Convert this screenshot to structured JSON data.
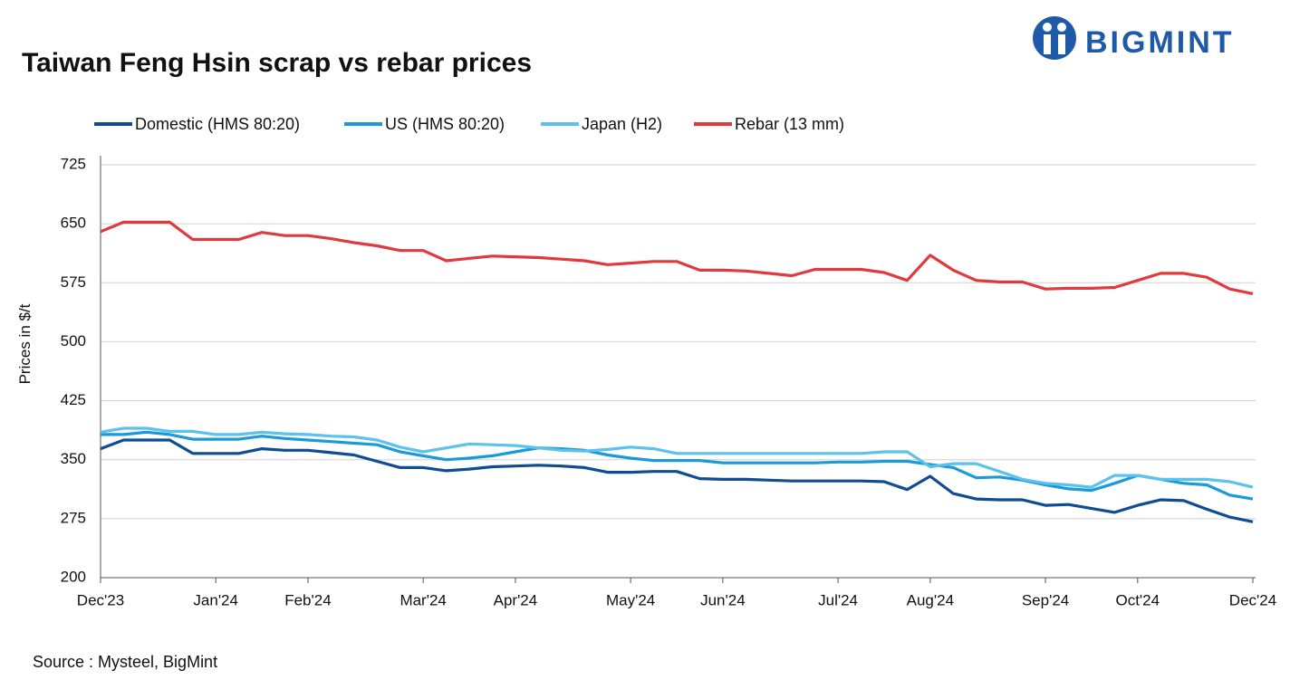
{
  "chart_data": {
    "type": "line",
    "title": "Taiwan Feng Hsin scrap vs rebar prices",
    "logo": "BIGMINT",
    "y_label": "Prices in $/t",
    "source": "Source : Mysteel, BigMint",
    "categories": [
      "Dec'23",
      null,
      null,
      null,
      null,
      "Jan'24",
      null,
      null,
      null,
      "Feb'24",
      null,
      null,
      null,
      null,
      "Mar'24",
      null,
      null,
      null,
      "Apr'24",
      null,
      null,
      null,
      null,
      "May'24",
      null,
      null,
      null,
      "Jun'24",
      null,
      null,
      null,
      null,
      "Jul'24",
      null,
      null,
      null,
      "Aug'24",
      null,
      null,
      null,
      null,
      "Sep'24",
      null,
      null,
      null,
      "Oct'24",
      null,
      null,
      null,
      null,
      "Dec'24"
    ],
    "series": [
      {
        "name": "Domestic (HMS 80:20)",
        "color": "#0f4c92",
        "values": [
          364,
          375,
          375,
          375,
          358,
          358,
          358,
          364,
          362,
          362,
          359,
          356,
          348,
          340,
          340,
          336,
          338,
          341,
          342,
          343,
          342,
          340,
          334,
          334,
          335,
          335,
          326,
          325,
          325,
          324,
          323,
          323,
          323,
          323,
          322,
          312,
          329,
          307,
          300,
          299,
          299,
          292,
          293,
          288,
          283,
          292,
          299,
          298,
          287,
          277,
          271
        ]
      },
      {
        "name": "US (HMS 80:20)",
        "color": "#1a9ad6",
        "values": [
          382,
          382,
          385,
          382,
          376,
          376,
          376,
          380,
          377,
          375,
          373,
          371,
          369,
          360,
          355,
          350,
          352,
          355,
          360,
          365,
          364,
          362,
          356,
          352,
          349,
          349,
          349,
          346,
          346,
          346,
          346,
          346,
          347,
          347,
          348,
          348,
          344,
          340,
          327,
          328,
          324,
          318,
          313,
          311,
          320,
          330,
          325,
          320,
          318,
          305,
          300
        ]
      },
      {
        "name": "Japan (H2)",
        "color": "#5bc2ee",
        "values": [
          385,
          390,
          390,
          386,
          386,
          382,
          382,
          385,
          383,
          382,
          380,
          379,
          375,
          366,
          360,
          365,
          370,
          369,
          368,
          365,
          362,
          361,
          363,
          366,
          364,
          358,
          358,
          358,
          358,
          358,
          358,
          358,
          358,
          358,
          360,
          360,
          341,
          345,
          345,
          335,
          325,
          320,
          318,
          315,
          330,
          330,
          325,
          325,
          325,
          322,
          315
        ]
      },
      {
        "name": "Rebar (13 mm)",
        "color": "#e03a3e",
        "values": [
          640,
          652,
          652,
          652,
          630,
          630,
          630,
          639,
          635,
          635,
          631,
          626,
          622,
          616,
          616,
          603,
          606,
          609,
          608,
          607,
          605,
          603,
          598,
          600,
          602,
          602,
          591,
          591,
          590,
          587,
          584,
          592,
          592,
          592,
          588,
          578,
          610,
          591,
          578,
          576,
          576,
          567,
          568,
          568,
          569,
          578,
          587,
          587,
          582,
          567,
          561
        ]
      }
    ],
    "ylim": [
      200,
      725
    ],
    "yticks": [
      200,
      275,
      350,
      425,
      500,
      575,
      650,
      725
    ],
    "grid": true
  }
}
